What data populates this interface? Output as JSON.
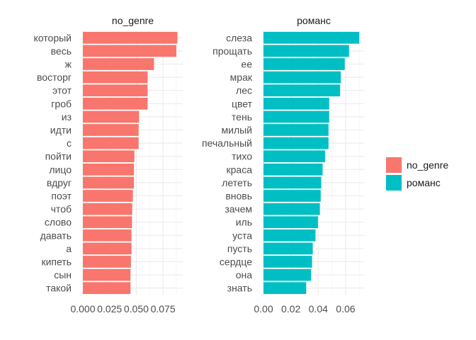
{
  "chart_data": {
    "type": "bar",
    "orientation": "horizontal",
    "facets": [
      {
        "name": "no_genre",
        "color": "#F8766D",
        "categories": [
          "который",
          "весь",
          "ж",
          "восторг",
          "этот",
          "гроб",
          "из",
          "идти",
          "с",
          "пойти",
          "лицо",
          "вдруг",
          "поэт",
          "чтоб",
          "слово",
          "давать",
          "а",
          "кипеть",
          "сын",
          "такой"
        ],
        "values": [
          0.0885,
          0.0875,
          0.0666,
          0.0606,
          0.0606,
          0.0606,
          0.0526,
          0.0522,
          0.0522,
          0.0482,
          0.0478,
          0.0478,
          0.0468,
          0.0462,
          0.046,
          0.0455,
          0.0455,
          0.045,
          0.0446,
          0.0446
        ],
        "xlim": [
          0,
          0.0935
        ],
        "xticks": [
          "0.000",
          "0.025",
          "0.050",
          "0.075"
        ],
        "xtick_values": [
          0,
          0.025,
          0.05,
          0.075
        ]
      },
      {
        "name": "романс",
        "color": "#00BFC4",
        "categories": [
          "слеза",
          "прощать",
          "ее",
          "мрак",
          "лес",
          "цвет",
          "тень",
          "милый",
          "печальный",
          "тихо",
          "краса",
          "лететь",
          "вновь",
          "зачем",
          "иль",
          "уста",
          "пусть",
          "сердце",
          "она",
          "знать"
        ],
        "values": [
          0.07,
          0.0625,
          0.0594,
          0.0565,
          0.056,
          0.048,
          0.048,
          0.0475,
          0.0475,
          0.045,
          0.0432,
          0.0422,
          0.0418,
          0.0412,
          0.0398,
          0.038,
          0.036,
          0.0355,
          0.0348,
          0.0312
        ],
        "xlim": [
          0,
          0.0735
        ],
        "xticks": [
          "0.00",
          "0.02",
          "0.04",
          "0.06"
        ],
        "xtick_values": [
          0,
          0.02,
          0.04,
          0.06
        ]
      }
    ],
    "legend": {
      "position": "right",
      "entries": [
        {
          "label": "no_genre",
          "color": "#F8766D"
        },
        {
          "label": "романс",
          "color": "#00BFC4"
        }
      ]
    },
    "grid": true,
    "title": "",
    "xlabel": "",
    "ylabel": ""
  }
}
